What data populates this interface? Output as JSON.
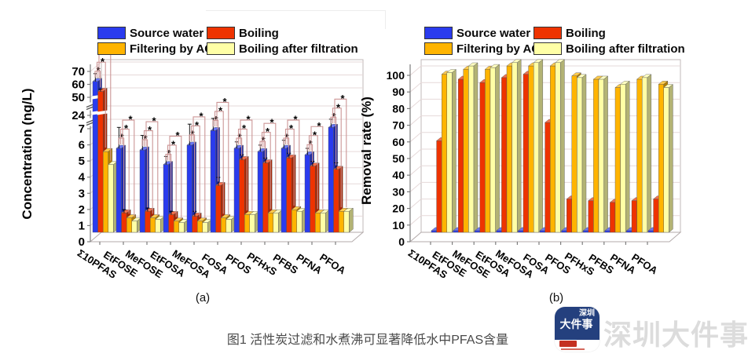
{
  "caption": {
    "text": "图1  活性炭过滤和水煮沸可显著降低水中PFAS含量"
  },
  "watermark": {
    "text": "深圳大件事",
    "logo_line1": "深圳",
    "logo_line2": "大件事",
    "logo_bg_color": "#24407e",
    "logo_badge_color": "#c43122"
  },
  "legend": {
    "items": [
      {
        "label": "Source water",
        "color": "#2a3bee"
      },
      {
        "label": "Boiling",
        "color": "#ee3300"
      },
      {
        "label": "Filtering by AC",
        "color": "#ffb400"
      },
      {
        "label": "Boiling after filtration",
        "color": "#ffffa6"
      }
    ]
  },
  "chart_data": [
    {
      "type": "bar",
      "panel_label": "(a)",
      "ylabel": "Concentration (ng/L)",
      "categories": [
        "Σ10PFAS",
        "EtFOSE",
        "MeFOSE",
        "EtFOSA",
        "MeFOSA",
        "FOSA",
        "PFOS",
        "PFHxS",
        "PFBS",
        "PFNA",
        "PFOA"
      ],
      "yticks": [
        0,
        1,
        2,
        3,
        4,
        5,
        6,
        7,
        24,
        50,
        60,
        70
      ],
      "ylim": [
        0,
        70
      ],
      "axis_breaks": [
        [
          7,
          24
        ],
        [
          24,
          50
        ]
      ],
      "grid": true,
      "legend_position": "top",
      "significance_marker": "*",
      "series": [
        {
          "name": "Source water",
          "values": [
            55,
            5.2,
            5.1,
            4.2,
            5.4,
            6.3,
            5.2,
            5.0,
            5.2,
            4.8,
            6.5
          ],
          "err": [
            6,
            1.3,
            0.9,
            0.5,
            1.3,
            1.8,
            0.4,
            0.4,
            0.5,
            0.4,
            0.6
          ]
        },
        {
          "name": "Boiling",
          "values": [
            45,
            1.2,
            1.3,
            1.1,
            1.0,
            2.9,
            4.5,
            4.3,
            4.6,
            4.1,
            3.9
          ],
          "err": [
            3,
            0.2,
            0.2,
            0.2,
            0.3,
            0.5,
            0.3,
            0.3,
            0.3,
            0.3,
            0.4
          ]
        },
        {
          "name": "Filtering by AC",
          "values": [
            5.0,
            0.9,
            0.9,
            0.7,
            0.7,
            0.9,
            1.1,
            1.2,
            1.4,
            1.2,
            1.3
          ]
        },
        {
          "name": "Boiling after filtration",
          "values": [
            4.2,
            0.7,
            0.8,
            0.6,
            0.6,
            0.8,
            1.1,
            1.2,
            1.3,
            1.2,
            1.3
          ]
        }
      ]
    },
    {
      "type": "bar",
      "panel_label": "(b)",
      "ylabel": "Removal rate (%)",
      "categories": [
        "Σ10PFAS",
        "EtFOSE",
        "MeFOSE",
        "EtFOSA",
        "MeFOSA",
        "FOSA",
        "PFOS",
        "PFHxS",
        "PFBS",
        "PFNA",
        "PFOA"
      ],
      "yticks": [
        0,
        10,
        20,
        30,
        40,
        50,
        60,
        70,
        80,
        90,
        100
      ],
      "ylim": [
        0,
        100
      ],
      "grid": true,
      "legend_position": "top",
      "series": [
        {
          "name": "Source water",
          "values": [
            1,
            1,
            1,
            1,
            1,
            1,
            1,
            1,
            1,
            1,
            1
          ]
        },
        {
          "name": "Boiling",
          "values": [
            55,
            92,
            90,
            93,
            95,
            66,
            20,
            19,
            18,
            19,
            20
          ]
        },
        {
          "name": "Filtering by AC",
          "values": [
            95,
            98,
            98,
            100,
            100,
            100,
            94,
            92,
            87,
            92,
            89
          ]
        },
        {
          "name": "Boiling after filtration",
          "values": [
            96,
            100,
            99,
            102,
            102,
            102,
            93,
            92,
            89,
            93,
            87
          ]
        }
      ]
    }
  ]
}
